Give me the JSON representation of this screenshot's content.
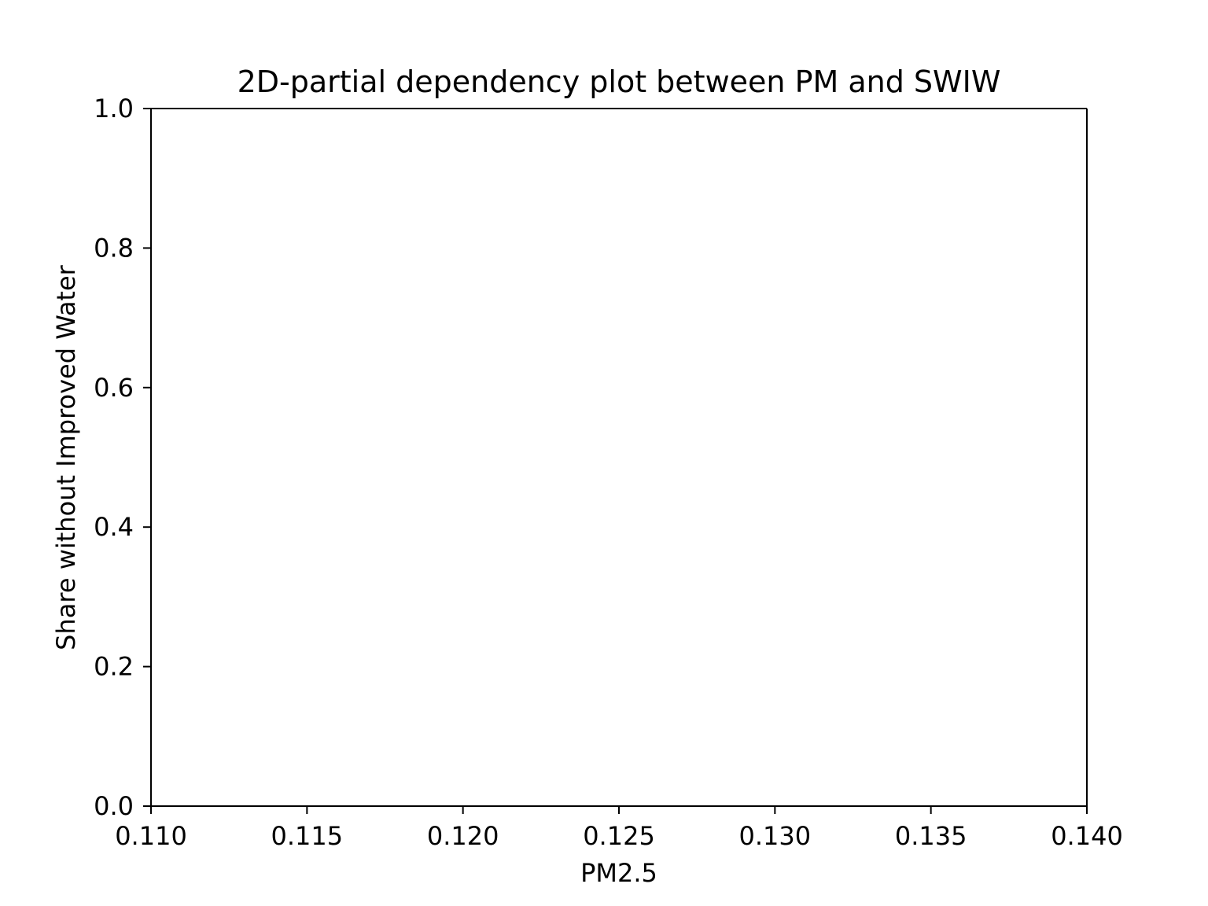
{
  "chart_data": {
    "type": "scatter",
    "title": "2D-partial dependency plot between PM and SWIW",
    "xlabel": "PM2.5",
    "ylabel": "Share without Improved Water",
    "xlim": [
      0.11,
      0.14
    ],
    "ylim": [
      0.0,
      1.0
    ],
    "xticks": [
      "0.110",
      "0.115",
      "0.120",
      "0.125",
      "0.130",
      "0.135",
      "0.140"
    ],
    "yticks": [
      "0.0",
      "0.2",
      "0.4",
      "0.6",
      "0.8",
      "1.0"
    ],
    "grid": false,
    "series": []
  }
}
